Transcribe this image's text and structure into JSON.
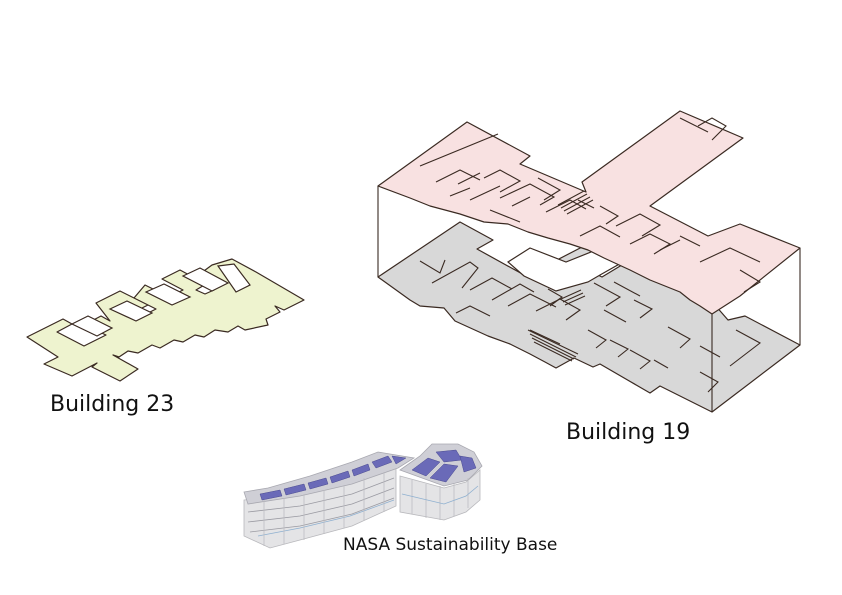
{
  "labels": {
    "building_23": "Building 23",
    "building_19": "Building 19",
    "nasa_base": "NASA Sustainability Base"
  },
  "colors": {
    "building_23_fill": "#eef3cf",
    "building_19_upper_fill": "#f8e1e1",
    "building_19_lower_fill": "#d8d8d8",
    "outline": "#3a2a22",
    "solar_panel": "#6a6ab8",
    "facade": "#e4e4e6"
  }
}
